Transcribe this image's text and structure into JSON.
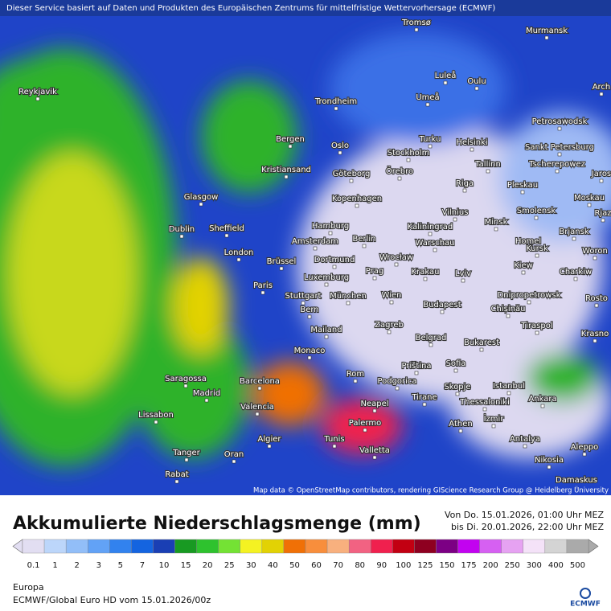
{
  "banner": "Dieser Service basiert auf Daten und Produkten des Europäischen Zentrums für mittelfristige Wettervorhersage (ECMWF)",
  "cities": [
    "Tromsø",
    "Murmansk",
    "Reykjavik",
    "Luleå",
    "Oulu",
    "Umeå",
    "Trondheim",
    "Arch",
    "Petrosawodsk",
    "Bergen",
    "Oslo",
    "Turku",
    "Helsinki",
    "Sankt Petersburg",
    "Stockholm",
    "Örebro",
    "Kristiansand",
    "Göteborg",
    "Tallinn",
    "Tscherepowez",
    "Jaros",
    "Riga",
    "Pleskau",
    "Glasgow",
    "Kopenhagen",
    "Moskau",
    "Dublin",
    "Sheffield",
    "Vilnius",
    "Smolensk",
    "Rjaz",
    "Hamburg",
    "Kaliningrad",
    "Minsk",
    "Brjansk",
    "Berlin",
    "Amsterdam",
    "Warschau",
    "Homel",
    "London",
    "Kursk",
    "Woron",
    "Wrocław",
    "Brüssel",
    "Dortmund",
    "Krakau",
    "Kiew",
    "Prag",
    "Charkiw",
    "Lviv",
    "Luxemburg",
    "Paris",
    "Stuttgart",
    "München",
    "Wien",
    "Dnipropetrowsk",
    "Rosto",
    "Budapest",
    "Chișinău",
    "Bern",
    "Tiraspol",
    "Mailand",
    "Zagreb",
    "Krasno",
    "Belgrad",
    "Bukarest",
    "Monaco",
    "Priština",
    "Sofia",
    "Saragossa",
    "Barcelona",
    "Rom",
    "Podgorica",
    "Istanbul",
    "Madrid",
    "Skopje",
    "Tirane",
    "Ankara",
    "Thessaloniki",
    "Neapel",
    "Valencia",
    "Lissabon",
    "İzmir",
    "Athen",
    "Palermo",
    "Algier",
    "Tunis",
    "Antalya",
    "Aleppo",
    "Valletta",
    "Tanger",
    "Oran",
    "Nikosia",
    "Rabat",
    "Damaskus"
  ],
  "attribution": "Map data © OpenStreetMap contributors, rendering GIScience Research Group @ Heidelberg University",
  "legend": {
    "title": "Akkumulierte Niederschlagsmenge (mm)",
    "period": [
      "Von Do. 15.01.2026, 01:00 Uhr MEZ",
      "bis Di. 20.01.2026, 22:00 Uhr MEZ"
    ],
    "levels": [
      0.1,
      1,
      2,
      3,
      5,
      7,
      10,
      15,
      20,
      25,
      30,
      40,
      50,
      60,
      70,
      80,
      90,
      100,
      125,
      150,
      175,
      200,
      250,
      300,
      400,
      500
    ],
    "colors": [
      "#e2def2",
      "#bcd6fa",
      "#92bef8",
      "#62a2f6",
      "#3282ee",
      "#1464e0",
      "#1a3fb4",
      "#189a22",
      "#2ec22e",
      "#74e234",
      "#f4f222",
      "#e2d204",
      "#f07006",
      "#f88e3c",
      "#f8b07e",
      "#f26282",
      "#f0204e",
      "#c20012",
      "#8e0020",
      "#7c0084",
      "#c202f0",
      "#d660f2",
      "#e6a2f2",
      "#f4e2f8",
      "#d4d4d4",
      "#aaaaaa"
    ]
  },
  "region": "Europa",
  "model": "ECMWF/Global Euro HD vom 15.01.2026/00z",
  "logo": "ECMWF"
}
